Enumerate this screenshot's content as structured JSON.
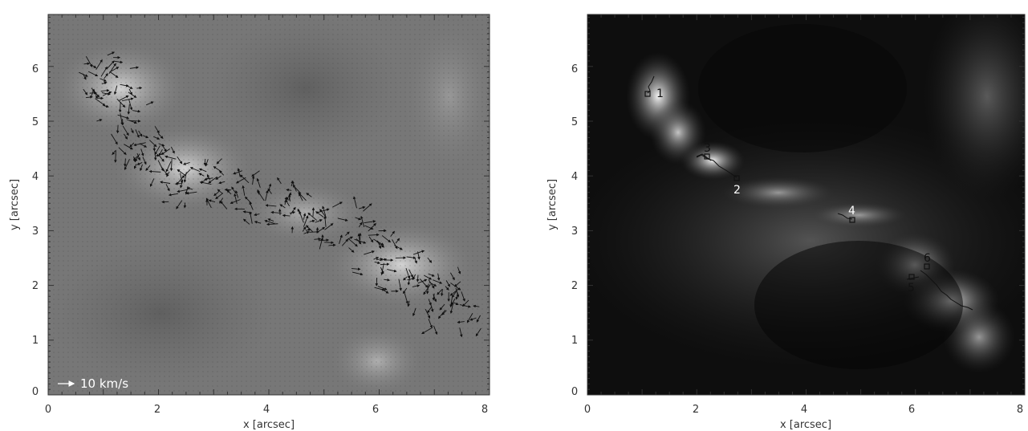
{
  "panels": [
    {
      "id": "left",
      "xlabel": "x [arcsec]",
      "ylabel": "y [arcsec]",
      "x_ticks": [
        "0",
        "2",
        "4",
        "6",
        "8"
      ],
      "y_ticks": [
        "0",
        "1",
        "2",
        "3",
        "4",
        "5",
        "6"
      ],
      "legend": "10 km/s"
    },
    {
      "id": "right",
      "xlabel": "x [arcsec]",
      "ylabel": "y [arcsec]",
      "x_ticks": [
        "0",
        "2",
        "4",
        "6",
        "8"
      ],
      "y_ticks": [
        "0",
        "1",
        "2",
        "3",
        "4",
        "5",
        "6"
      ]
    }
  ],
  "markers": [
    {
      "label": "1"
    },
    {
      "label": "2"
    },
    {
      "label": "3"
    },
    {
      "label": "4"
    },
    {
      "label": "5"
    },
    {
      "label": "6"
    }
  ]
}
